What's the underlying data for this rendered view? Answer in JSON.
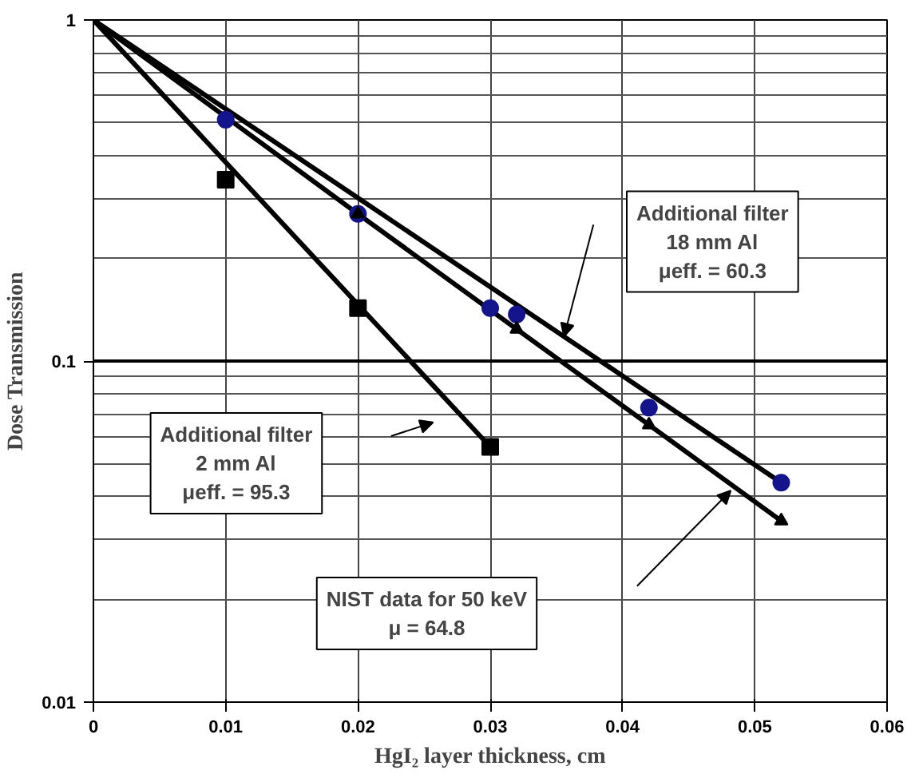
{
  "chart_data": {
    "type": "scatter",
    "xlabel": "HgI₂ layer thickness, cm",
    "ylabel": "Dose Transmission",
    "log": "y",
    "grid": true,
    "xlim": [
      0,
      0.06
    ],
    "xticks": [
      0,
      0.01,
      0.02,
      0.03,
      0.04,
      0.05,
      0.06
    ],
    "ylim": [
      0.01,
      1
    ],
    "yticks": [
      0.01,
      0.1,
      1
    ],
    "series": [
      {
        "marker": "circle",
        "color": "#14148c",
        "x": [
          0.01,
          0.02,
          0.03,
          0.032,
          0.042,
          0.052
        ],
        "values": [
          0.51,
          0.27,
          0.143,
          0.137,
          0.073,
          0.044
        ]
      },
      {
        "marker": "square",
        "color": "#000000",
        "x": [
          0.01,
          0.02,
          0.03
        ],
        "values": [
          0.34,
          0.143,
          0.056
        ]
      },
      {
        "type": "line",
        "color": "#000000",
        "x": [
          0,
          0.052
        ],
        "values": [
          1,
          0.044
        ]
      },
      {
        "type": "line",
        "color": "#000000",
        "x": [
          0,
          0.03
        ],
        "values": [
          1,
          0.056
        ]
      },
      {
        "type": "line",
        "marker": "triangle",
        "color": "#000000",
        "x": [
          0,
          0.02,
          0.032,
          0.042,
          0.052
        ],
        "values": [
          1,
          0.27,
          0.124,
          0.065,
          0.034
        ]
      }
    ],
    "ref_lines": [
      {
        "axis": "y",
        "value": 0.1,
        "color": "#000000"
      }
    ],
    "annotations": [
      "Additional filter\n18 mm Al\nμeff. = 60.3",
      "Additional filter\n2 mm Al\nμeff. = 95.3",
      "NIST data for 50 keV\nμ = 64.8"
    ]
  }
}
